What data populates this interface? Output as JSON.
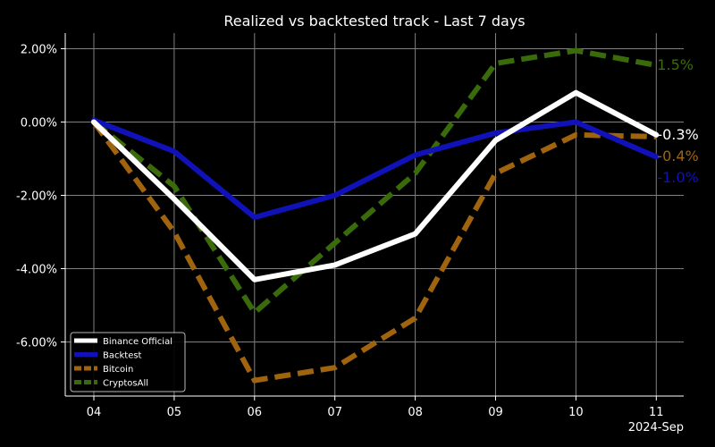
{
  "chart_data": {
    "type": "line",
    "title": "Realized vs backtested track - Last 7 days",
    "xlabel": "",
    "ylabel": "",
    "x_offset_label": "2024-Sep",
    "categories": [
      "04",
      "05",
      "06",
      "07",
      "08",
      "09",
      "10",
      "11"
    ],
    "ylim": [
      -7.5,
      2.4
    ],
    "yticks": [
      2,
      0,
      -2,
      -4,
      -6
    ],
    "ytick_labels": [
      "2.00%",
      "0.00%",
      "-2.00%",
      "-4.00%",
      "-6.00%"
    ],
    "grid": true,
    "legend_position": "lower-left",
    "background": "#000000",
    "series": [
      {
        "name": "Binance Official",
        "color": "#ffffff",
        "style": "solid",
        "values": [
          0.0,
          -2.1,
          -4.3,
          -3.9,
          -3.05,
          -0.5,
          0.8,
          -0.35
        ],
        "end_label": "-0.3%"
      },
      {
        "name": "Backtest",
        "color": "#1111b8",
        "style": "solid",
        "values": [
          0.05,
          -0.8,
          -2.6,
          -2.0,
          -0.9,
          -0.3,
          0.0,
          -0.95
        ],
        "end_label": "-1.0%"
      },
      {
        "name": "Bitcoin",
        "color": "#a0640f",
        "style": "dashed",
        "values": [
          0.0,
          -3.0,
          -7.05,
          -6.7,
          -5.35,
          -1.4,
          -0.35,
          -0.4
        ],
        "end_label": "-0.4%"
      },
      {
        "name": "CryptosAll",
        "color": "#3a6b0a",
        "style": "dashed",
        "values": [
          0.0,
          -1.75,
          -5.2,
          -3.3,
          -1.4,
          1.6,
          1.95,
          1.55
        ],
        "end_label": "1.5%"
      }
    ]
  }
}
